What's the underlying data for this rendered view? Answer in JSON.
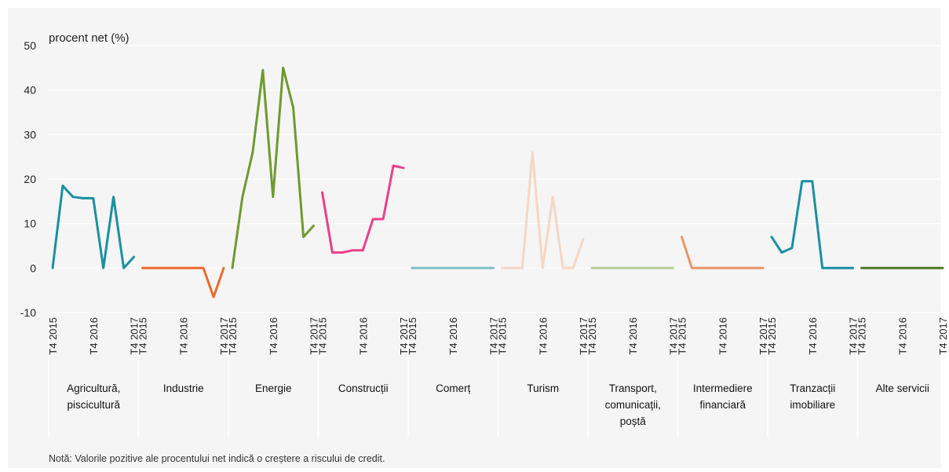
{
  "chart_data": {
    "type": "line",
    "ylabel": "procent net (%)",
    "ylim": [
      -10,
      50
    ],
    "yticks": [
      50,
      40,
      30,
      20,
      10,
      0,
      -10
    ],
    "grid": true,
    "x_tick_labels": [
      "T4 2015",
      "T4 2016",
      "T4 2017"
    ],
    "x_points_per_panel": 9,
    "panels": [
      {
        "name": "Agricultură, piscicultură",
        "lines": [
          "Agricultură,",
          "piscicultură"
        ],
        "color": "#1b8fa0",
        "values": [
          0,
          18.5,
          16,
          15.7,
          15.7,
          0,
          16,
          0,
          2.5
        ]
      },
      {
        "name": "Industrie",
        "lines": [
          "Industrie"
        ],
        "color": "#ee6a2c",
        "values": [
          0,
          0,
          0,
          0,
          0,
          0,
          0,
          -6.5,
          0
        ]
      },
      {
        "name": "Energie",
        "lines": [
          "Energie"
        ],
        "color": "#6f9a30",
        "values": [
          0,
          16,
          26,
          44.5,
          16,
          45,
          36,
          7,
          9.5
        ]
      },
      {
        "name": "Construcții",
        "lines": [
          "Construcții"
        ],
        "color": "#e9418b",
        "values": [
          17,
          3.5,
          3.5,
          4,
          4,
          11,
          11,
          23,
          22.5
        ]
      },
      {
        "name": "Comerț",
        "lines": [
          "Comerț"
        ],
        "color": "#7fbfc6",
        "values": [
          0,
          0,
          0,
          0,
          0,
          0,
          0,
          0,
          0
        ]
      },
      {
        "name": "Turism",
        "lines": [
          "Turism"
        ],
        "color": "#f5d7c3",
        "values": [
          0,
          0,
          0,
          26,
          0,
          16,
          0,
          0,
          6.5
        ]
      },
      {
        "name": "Transport, comunicații, poștă",
        "lines": [
          "Transport,",
          "comunicații,",
          "poștă"
        ],
        "color": "#b8cf9d",
        "values": [
          0,
          0,
          0,
          0,
          0,
          0,
          0,
          0,
          0
        ]
      },
      {
        "name": "Intermediere financiară",
        "lines": [
          "Intermediere",
          "financiară"
        ],
        "color": "#e8956a",
        "values": [
          7,
          0,
          0,
          0,
          0,
          0,
          0,
          0,
          0
        ]
      },
      {
        "name": "Tranzacții imobiliare",
        "lines": [
          "Tranzacții",
          "imobiliare"
        ],
        "color": "#1b8fa0",
        "values": [
          7,
          3.5,
          4.5,
          19.5,
          19.5,
          0,
          0,
          0,
          0
        ]
      },
      {
        "name": "Alte servicii",
        "lines": [
          "Alte servicii"
        ],
        "color": "#4f7a28",
        "values": [
          0,
          0,
          0,
          0,
          0,
          0,
          0,
          0,
          0
        ]
      }
    ]
  },
  "note": "Notă: Valorile pozitive ale procentului net indică o creștere a riscului de credit."
}
